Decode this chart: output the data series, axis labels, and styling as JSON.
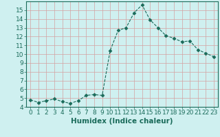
{
  "x": [
    0,
    1,
    2,
    3,
    4,
    5,
    6,
    7,
    8,
    9,
    10,
    11,
    12,
    13,
    14,
    15,
    16,
    17,
    18,
    19,
    20,
    21,
    22,
    23
  ],
  "y": [
    4.8,
    4.5,
    4.7,
    4.9,
    4.6,
    4.4,
    4.7,
    5.3,
    5.4,
    5.3,
    10.4,
    12.7,
    13.0,
    14.7,
    15.6,
    13.9,
    13.0,
    12.1,
    11.8,
    11.4,
    11.5,
    10.5,
    10.1,
    9.7
  ],
  "line_color": "#1a6b5a",
  "marker": "D",
  "marker_size": 2.5,
  "bg_color": "#cff0f0",
  "grid_color": "#d4a0a0",
  "xlabel": "Humidex (Indice chaleur)",
  "ylim": [
    4,
    16
  ],
  "xlim": [
    -0.5,
    23.5
  ],
  "yticks": [
    4,
    5,
    6,
    7,
    8,
    9,
    10,
    11,
    12,
    13,
    14,
    15
  ],
  "xticks": [
    0,
    1,
    2,
    3,
    4,
    5,
    6,
    7,
    8,
    9,
    10,
    11,
    12,
    13,
    14,
    15,
    16,
    17,
    18,
    19,
    20,
    21,
    22,
    23
  ],
  "tick_color": "#1a6b5a",
  "xlabel_fontsize": 7.5,
  "tick_fontsize": 6.5
}
